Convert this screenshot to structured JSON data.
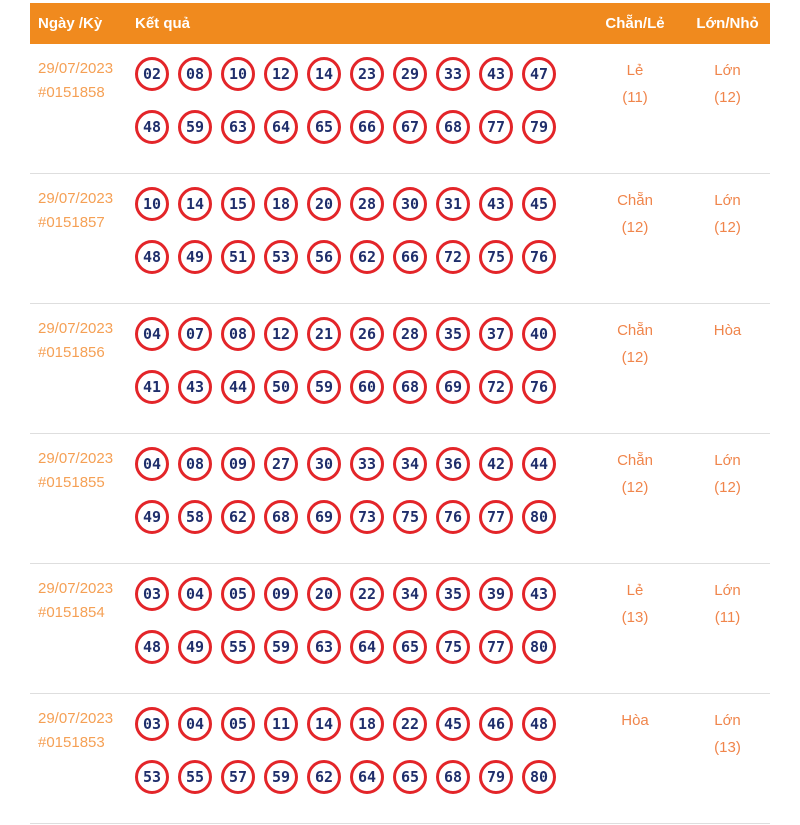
{
  "header": {
    "date_col": "Ngày /Kỳ",
    "result_col": "Kết quả",
    "even_odd_col": "Chẵn/Lẻ",
    "big_small_col": "Lớn/Nhỏ"
  },
  "colors": {
    "header_bg": "#F08A1E",
    "header_text": "#FFFFFF",
    "date_text": "#F5A055",
    "value_text": "#F0854B",
    "ball_border": "#E32529",
    "ball_number": "#1F2E6B",
    "divider": "#DEDEDE"
  },
  "rows": [
    {
      "date": "29/07/2023",
      "draw_id": "#0151858",
      "line1": [
        "02",
        "08",
        "10",
        "12",
        "14",
        "23",
        "29",
        "33",
        "43",
        "47"
      ],
      "line2": [
        "48",
        "59",
        "63",
        "64",
        "65",
        "66",
        "67",
        "68",
        "77",
        "79"
      ],
      "even_odd": {
        "label": "Lẻ",
        "count": "(11)"
      },
      "big_small": {
        "label": "Lớn",
        "count": "(12)"
      }
    },
    {
      "date": "29/07/2023",
      "draw_id": "#0151857",
      "line1": [
        "10",
        "14",
        "15",
        "18",
        "20",
        "28",
        "30",
        "31",
        "43",
        "45"
      ],
      "line2": [
        "48",
        "49",
        "51",
        "53",
        "56",
        "62",
        "66",
        "72",
        "75",
        "76"
      ],
      "even_odd": {
        "label": "Chẵn",
        "count": "(12)"
      },
      "big_small": {
        "label": "Lớn",
        "count": "(12)"
      }
    },
    {
      "date": "29/07/2023",
      "draw_id": "#0151856",
      "line1": [
        "04",
        "07",
        "08",
        "12",
        "21",
        "26",
        "28",
        "35",
        "37",
        "40"
      ],
      "line2": [
        "41",
        "43",
        "44",
        "50",
        "59",
        "60",
        "68",
        "69",
        "72",
        "76"
      ],
      "even_odd": {
        "label": "Chẵn",
        "count": "(12)"
      },
      "big_small": {
        "label": "Hòa",
        "count": ""
      }
    },
    {
      "date": "29/07/2023",
      "draw_id": "#0151855",
      "line1": [
        "04",
        "08",
        "09",
        "27",
        "30",
        "33",
        "34",
        "36",
        "42",
        "44"
      ],
      "line2": [
        "49",
        "58",
        "62",
        "68",
        "69",
        "73",
        "75",
        "76",
        "77",
        "80"
      ],
      "even_odd": {
        "label": "Chẵn",
        "count": "(12)"
      },
      "big_small": {
        "label": "Lớn",
        "count": "(12)"
      }
    },
    {
      "date": "29/07/2023",
      "draw_id": "#0151854",
      "line1": [
        "03",
        "04",
        "05",
        "09",
        "20",
        "22",
        "34",
        "35",
        "39",
        "43"
      ],
      "line2": [
        "48",
        "49",
        "55",
        "59",
        "63",
        "64",
        "65",
        "75",
        "77",
        "80"
      ],
      "even_odd": {
        "label": "Lẻ",
        "count": "(13)"
      },
      "big_small": {
        "label": "Lớn",
        "count": "(11)"
      }
    },
    {
      "date": "29/07/2023",
      "draw_id": "#0151853",
      "line1": [
        "03",
        "04",
        "05",
        "11",
        "14",
        "18",
        "22",
        "45",
        "46",
        "48"
      ],
      "line2": [
        "53",
        "55",
        "57",
        "59",
        "62",
        "64",
        "65",
        "68",
        "79",
        "80"
      ],
      "even_odd": {
        "label": "Hòa",
        "count": ""
      },
      "big_small": {
        "label": "Lớn",
        "count": "(13)"
      }
    }
  ]
}
